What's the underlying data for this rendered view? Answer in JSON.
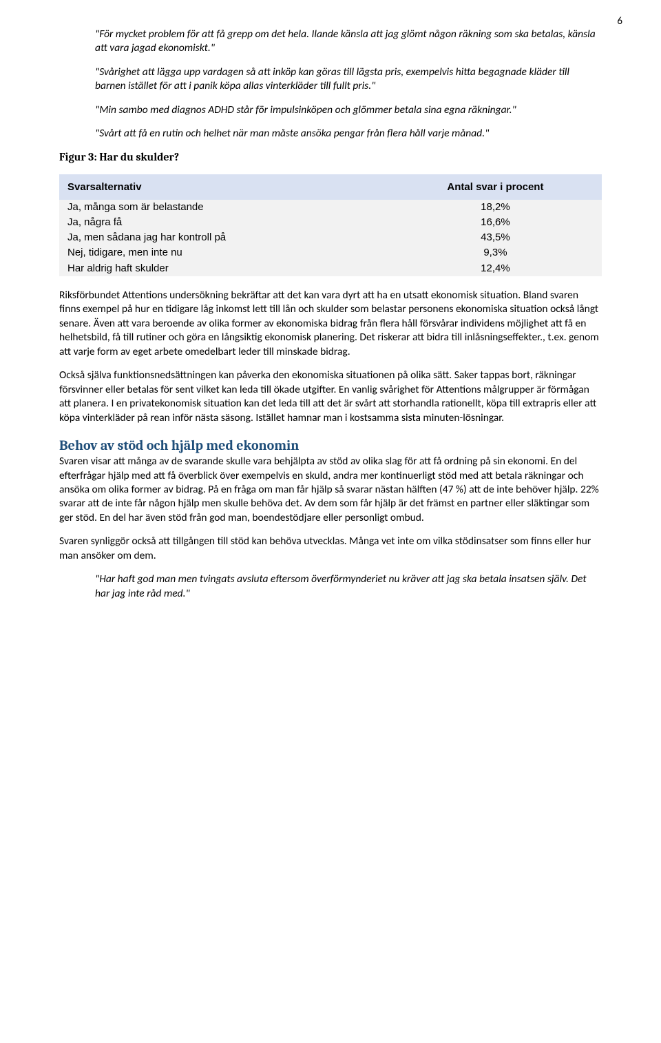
{
  "page_number": "6",
  "quotes_top": [
    "\"För mycket problem för att få grepp om det hela. Ilande känsla att jag glömt någon räkning som ska betalas, känsla att vara jagad ekonomiskt.\"",
    "\"Svårighet att lägga upp vardagen så att inköp kan göras till lägsta pris, exempelvis hitta begagnade kläder till barnen istället för att i panik köpa allas vinterkläder till fullt pris.\"",
    "\"Min sambo med diagnos ADHD står för impulsinköpen och glömmer betala sina egna räkningar.\"",
    "\"Svårt att få en rutin och helhet när man måste ansöka pengar från flera håll varje månad.\""
  ],
  "figure_caption": "Figur 3: Har du skulder?",
  "table": {
    "header_row_bg": "#d9e1f2",
    "body_bg": "#f2f2f2",
    "columns": [
      "Svarsalternativ",
      "Antal svar i procent"
    ],
    "rows": [
      [
        "Ja, många som är belastande",
        "18,2%"
      ],
      [
        "Ja, några få",
        "16,6%"
      ],
      [
        "Ja, men sådana jag har kontroll på",
        "43,5%"
      ],
      [
        "Nej, tidigare, men inte nu",
        "9,3%"
      ],
      [
        "Har aldrig haft skulder",
        "12,4%"
      ]
    ]
  },
  "paragraphs_mid": [
    "Riksförbundet Attentions undersökning bekräftar att det kan vara dyrt att ha en utsatt ekonomisk situation. Bland svaren finns exempel på hur en tidigare låg inkomst lett till lån och skulder som belastar personens ekonomiska situation också långt senare. Även att vara beroende av olika former av ekonomiska bidrag från flera håll försvårar individens möjlighet att få en helhetsbild, få till rutiner och göra en långsiktig ekonomisk planering. Det riskerar att bidra till inlåsningseffekter., t.ex. genom att varje form av eget arbete omedelbart leder till minskade bidrag.",
    "Också själva funktionsnedsättningen kan påverka den ekonomiska situationen på olika sätt. Saker tappas bort, räkningar försvinner eller betalas för sent vilket kan leda till ökade utgifter. En vanlig svårighet för Attentions målgrupper är förmågan att planera. I en privatekonomisk situation kan det leda till att det är svårt att storhandla rationellt, köpa till extrapris eller att köpa vinterkläder på rean inför nästa säsong. Istället hamnar man i kostsamma sista minuten-lösningar."
  ],
  "section_heading": "Behov av stöd och hjälp med ekonomin",
  "paragraphs_bottom": [
    "Svaren visar att många av de svarande skulle vara behjälpta av stöd av olika slag för att få ordning på sin ekonomi. En del efterfrågar hjälp med att få överblick över exempelvis en skuld, andra mer kontinuerligt stöd med att betala räkningar och ansöka om olika former av bidrag. På en fråga om man får hjälp så svarar nästan hälften (47 %) att de inte behöver hjälp. 22% svarar att de inte får någon hjälp men skulle behöva det. Av dem som får hjälp är det främst en partner eller släktingar som ger stöd. En del har även stöd från god man, boendestödjare eller personligt ombud.",
    "Svaren synliggör också att tillgången till stöd kan behöva utvecklas. Många vet inte om vilka stödinsatser som finns eller hur man ansöker om dem."
  ],
  "quote_bottom": "\"Har haft god man men tvingats avsluta eftersom överförmynderiet nu kräver att jag ska betala insatsen själv. Det har jag inte råd med.\""
}
